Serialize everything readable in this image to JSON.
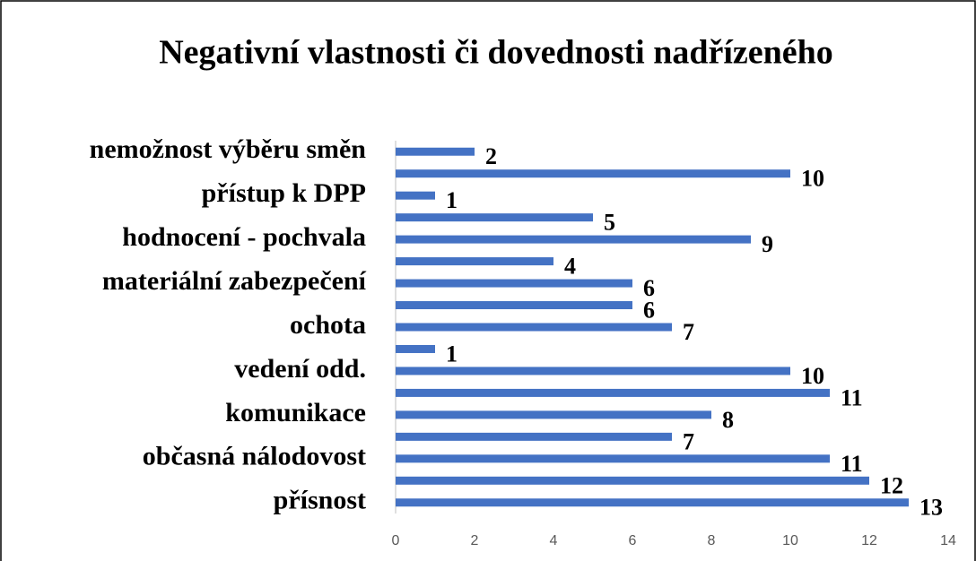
{
  "chart_data": {
    "type": "bar",
    "orientation": "horizontal",
    "title": "Negativní vlastnosti či dovednosti nadřízeného",
    "categories": [
      "přísnost",
      null,
      "občasná nálodovost",
      null,
      "komunikace",
      null,
      "vedení odd.",
      null,
      "ochota",
      null,
      "materiální zabezpečení",
      null,
      "hodnocení - pochvala",
      null,
      "přístup k DPP",
      null,
      "nemožnost výběru směn"
    ],
    "values": [
      13,
      12,
      11,
      7,
      8,
      11,
      10,
      1,
      7,
      6,
      6,
      4,
      9,
      5,
      1,
      10,
      2
    ],
    "color": "#4472c4",
    "xlim": [
      0,
      14
    ],
    "xticks": [
      0,
      2,
      4,
      6,
      8,
      10,
      12,
      14
    ],
    "grid": false
  }
}
